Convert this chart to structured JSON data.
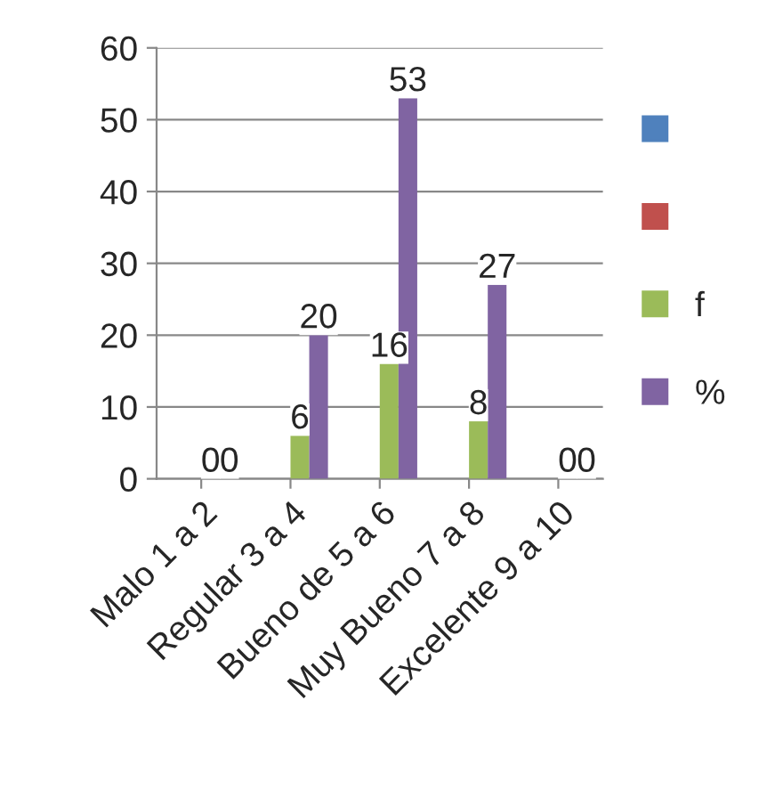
{
  "chart_data": {
    "type": "bar",
    "categories": [
      "Malo 1 a 2",
      "Regular 3 a 4",
      "Bueno de 5 a 6",
      "Muy Bueno 7 a 8",
      "Excelente 9 a 10"
    ],
    "series": [
      {
        "color": "#4f81bd",
        "values": [
          null,
          null,
          null,
          null,
          null
        ]
      },
      {
        "color": "#c0504d",
        "values": [
          null,
          null,
          null,
          null,
          null
        ]
      },
      {
        "name": "f",
        "color": "#9bbb59",
        "values": [
          0,
          6,
          16,
          8,
          0
        ]
      },
      {
        "name": "%",
        "color": "#8064a2",
        "values": [
          0,
          20,
          53,
          27,
          0
        ]
      }
    ],
    "ylim": [
      0,
      60
    ],
    "yticks": [
      0,
      10,
      20,
      30,
      40,
      50,
      60
    ],
    "grid": "y",
    "legend": "right",
    "data_labels": true
  }
}
